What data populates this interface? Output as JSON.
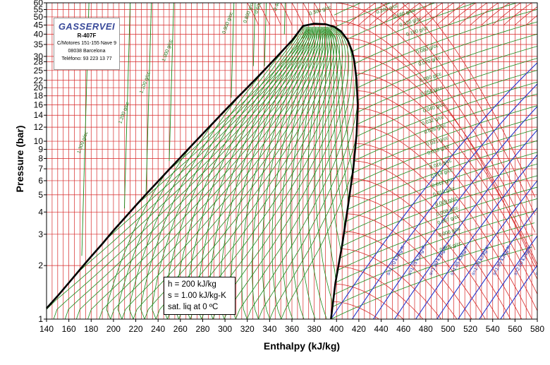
{
  "chart_data": {
    "type": "line",
    "subtitle": "R-407F",
    "xlabel": "Enthalpy (kJ/kg)",
    "ylabel": "Pressure (bar)",
    "x_scale": "linear",
    "y_scale": "log",
    "xlim": [
      140,
      580
    ],
    "ylim": [
      1,
      60
    ],
    "x_ticks": [
      140,
      160,
      180,
      200,
      220,
      240,
      260,
      280,
      300,
      320,
      340,
      360,
      380,
      400,
      420,
      440,
      460,
      480,
      500,
      520,
      540,
      560,
      580
    ],
    "y_ticks": [
      1,
      2,
      3,
      4,
      5,
      6,
      7,
      8,
      9,
      10,
      12,
      14,
      16,
      18,
      20,
      22,
      25,
      28,
      30,
      35,
      40,
      45,
      50,
      55,
      60
    ],
    "grid": true,
    "saturation_liquid": {
      "x": [
        140,
        150,
        160,
        170,
        180,
        190,
        200,
        210,
        220,
        230,
        240,
        250,
        260,
        270,
        280,
        290,
        300,
        310,
        320,
        330,
        340,
        350,
        360,
        370
      ],
      "y": [
        1.15,
        1.35,
        1.6,
        1.9,
        2.25,
        2.65,
        3.15,
        3.7,
        4.35,
        5.1,
        5.95,
        6.95,
        8.1,
        9.45,
        11.0,
        12.8,
        14.9,
        17.3,
        20.0,
        23.2,
        27.0,
        31.5,
        36.8,
        44.5
      ]
    },
    "saturation_vapor": {
      "x": [
        370,
        380,
        390,
        398,
        404,
        410,
        414,
        416,
        418,
        419,
        418,
        415,
        410,
        405,
        399,
        395
      ],
      "y": [
        44.5,
        45.8,
        45.5,
        44.0,
        41.5,
        37.0,
        32.0,
        28.0,
        22.0,
        16.0,
        11.0,
        7.0,
        4.2,
        2.6,
        1.6,
        1.0
      ]
    },
    "density_lines": {
      "unit": "g/cc",
      "labels": [
        "1.300 g/cc",
        "1.200 g/cc",
        "1.100 g/cc",
        "1.000 g/cc",
        "0.900 g/cc",
        "0.800 g/cc",
        "0.600 g/cc",
        "0.400 g/cc",
        "0.300 g/cc",
        "0.200 g/cc",
        "0.160 g/cc",
        "0.120 g/cc",
        "0.100 g/cc",
        "0.080 g/cc",
        "0.070 g/cc",
        "0.060 g/cc",
        "0.050 g/cc",
        "0.040 g/cc",
        "0.032 g/cc",
        "0.026 g/cc",
        "0.021 g/cc",
        "0.019 g/cc",
        "0.016 g/cc",
        "0.014 g/cc",
        "0.012 g/cc",
        "0.010 g/cc",
        "0.009 g/cc",
        "0.008 g/cc",
        "0.007 g/cc",
        "0.006 g/cc",
        "0.005 g/cc"
      ],
      "values": [
        1.3,
        1.2,
        1.1,
        1.0,
        0.9,
        0.8,
        0.6,
        0.4,
        0.3,
        0.2,
        0.16,
        0.12,
        0.1,
        0.08,
        0.07,
        0.06,
        0.05,
        0.04,
        0.032,
        0.026,
        0.021,
        0.019,
        0.016,
        0.014,
        0.012,
        0.01,
        0.009,
        0.008,
        0.007,
        0.006,
        0.005
      ],
      "label_h": [
        170,
        207,
        226,
        246,
        300,
        319,
        329,
        346,
        376,
        436,
        451,
        457,
        463,
        472,
        474,
        475,
        476,
        478,
        477,
        479,
        481,
        482,
        484,
        485,
        486,
        487,
        489,
        490,
        491,
        492,
        493
      ],
      "label_p": [
        8.5,
        12.5,
        18.5,
        28,
        40,
        46,
        52,
        54,
        51,
        52,
        49,
        44,
        39,
        31,
        26.5,
        21.5,
        18,
        14.5,
        12.3,
        11,
        9.4,
        8.4,
        7,
        6.2,
        5.5,
        4.9,
        4.3,
        3.8,
        3.4,
        2.9,
        2.4
      ]
    },
    "isentropes": {
      "labels": [
        "s=1.70 kJ/kg-K",
        "s=1.75 kJ/kg-K",
        "s=1.80 kJ/kg-K",
        "s=1.85 kJ/kg-K",
        "s=1.90 kJ/kg-K",
        "s=1.95 kJ/kg-K",
        "s=2.00 kJ/kg-K",
        "s=2.05 kJ/kg-K",
        "s=2.10 kJ/kg-K"
      ],
      "values": [
        1.7,
        1.75,
        1.8,
        1.85,
        1.9,
        1.95,
        2.0,
        2.05,
        2.1
      ],
      "start_h": [
        395,
        414,
        433,
        452,
        471,
        490,
        509,
        528,
        547
      ]
    },
    "annotations": [
      "h = 200 kJ/kg",
      "s = 1.00 kJ/kg-K",
      "sat. liq at 0 ºC"
    ],
    "brand": {
      "logo": "GASSERVEI",
      "product": "R-407F",
      "address_line_1": "C/Motores 151-155 Nave 9",
      "address_line_2": "08038 Barcelona",
      "phone": "Teléfono: 93 223 13 77"
    }
  },
  "colors": {
    "grid_isobar": "#d62828",
    "isotherm": "#d62828",
    "isochore": "#1a8a1a",
    "isentrope": "#2233cc",
    "dome": "#000000"
  }
}
